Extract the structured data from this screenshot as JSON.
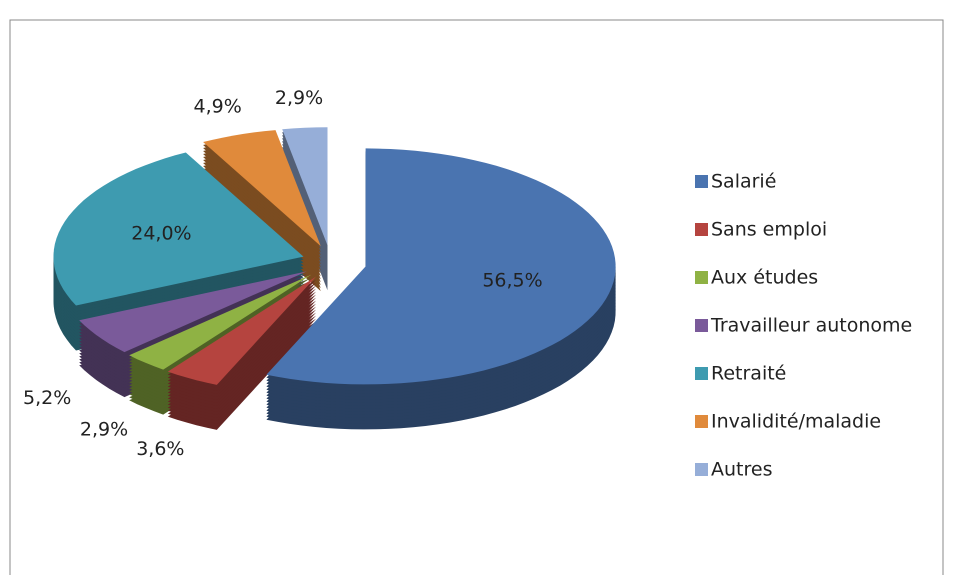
{
  "chart_data": {
    "type": "pie",
    "categories": [
      "Salarié",
      "Sans emploi",
      "Aux études",
      "Travailleur autonome",
      "Retraité",
      "Invalidité/maladie",
      "Autres"
    ],
    "values": [
      56.5,
      3.6,
      2.9,
      5.2,
      24.0,
      4.9,
      2.9
    ],
    "value_labels": [
      "56,5%",
      "3,6%",
      "2,9%",
      "5,2%",
      "24,0%",
      "4,9%",
      "2,9%"
    ],
    "colors": [
      "#4a74b0",
      "#b5443f",
      "#8fb244",
      "#7a5a9a",
      "#3e9bb0",
      "#e08a3b",
      "#96aed8"
    ],
    "legend": "right"
  }
}
